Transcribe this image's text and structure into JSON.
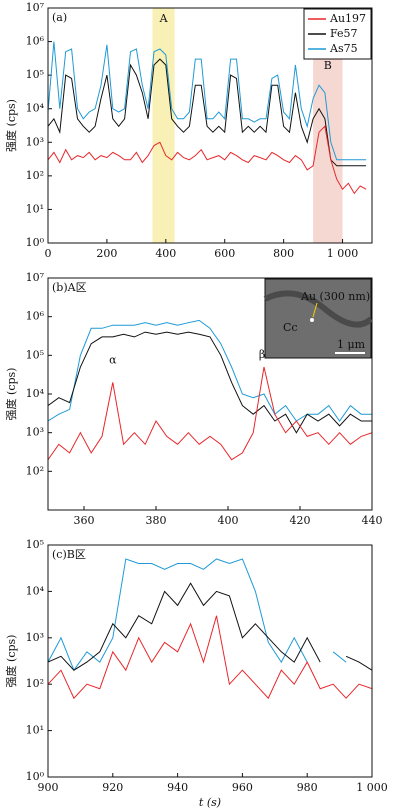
{
  "chart_data": [
    {
      "type": "line",
      "title": "(a)",
      "y_label": "强度 (cps)",
      "log_y": true,
      "legend": "upper right",
      "xlim": [
        0,
        1100
      ],
      "xticks": [
        0,
        200,
        400,
        600,
        800,
        {
          "value": 1000,
          "label": "1 000"
        }
      ],
      "ylim": [
        1,
        10000000
      ],
      "yticks": [
        {
          "value": 1,
          "label": "10⁰"
        },
        {
          "value": 10,
          "label": "10¹"
        },
        {
          "value": 100,
          "label": "10²"
        },
        {
          "value": 1000,
          "label": "10³"
        },
        {
          "value": 10000,
          "label": "10⁴"
        },
        {
          "value": 100000,
          "label": "10⁵"
        },
        {
          "value": 1000000,
          "label": "10⁶"
        },
        {
          "value": 10000000,
          "label": "10⁷"
        }
      ],
      "highlights": [
        {
          "label": "A",
          "x": [
            355,
            430
          ],
          "color": "#f8f0b4"
        },
        {
          "label": "B",
          "x": [
            900,
            1000
          ],
          "color": "#f5d8d2"
        }
      ],
      "x": [
        0,
        20,
        40,
        60,
        80,
        100,
        120,
        140,
        160,
        180,
        200,
        220,
        240,
        260,
        280,
        300,
        320,
        340,
        360,
        380,
        400,
        420,
        440,
        460,
        480,
        500,
        520,
        540,
        560,
        580,
        600,
        620,
        640,
        660,
        680,
        700,
        720,
        740,
        760,
        780,
        800,
        820,
        840,
        860,
        880,
        900,
        920,
        940,
        960,
        980,
        1000,
        1020,
        1040,
        1060,
        1080
      ],
      "series": [
        {
          "name": "Au197",
          "color": "#e8262a",
          "values": [
            300,
            500,
            250,
            600,
            300,
            400,
            350,
            500,
            300,
            400,
            350,
            500,
            400,
            300,
            300,
            500,
            250,
            400,
            800,
            1000,
            400,
            300,
            500,
            350,
            300,
            400,
            600,
            300,
            350,
            400,
            300,
            500,
            400,
            300,
            250,
            400,
            350,
            300,
            500,
            400,
            300,
            250,
            400,
            300,
            150,
            200,
            2000,
            3000,
            300,
            80,
            40,
            60,
            30,
            50,
            40
          ]
        },
        {
          "name": "Fe57",
          "color": "#111111",
          "values": [
            3000,
            5000,
            2000,
            100000,
            80000,
            5000,
            3000,
            2000,
            3000,
            20000,
            100000,
            5000,
            3000,
            5000,
            200000,
            100000,
            30000,
            5000,
            200000,
            300000,
            200000,
            5000,
            3000,
            2000,
            3000,
            50000,
            50000,
            3000,
            2000,
            3000,
            2000,
            100000,
            80000,
            2000,
            3000,
            2000,
            3000,
            2000,
            50000,
            50000,
            3000,
            2000,
            30000,
            3000,
            1000,
            5000,
            10000,
            5000,
            300,
            200,
            200,
            200,
            200,
            200,
            200
          ]
        },
        {
          "name": "As75",
          "color": "#1f9ad6",
          "values": [
            8000,
            1000000,
            10000,
            500000,
            600000,
            10000,
            5000,
            8000,
            10000,
            50000,
            800000,
            10000,
            8000,
            10000,
            500000,
            600000,
            50000,
            10000,
            500000,
            600000,
            400000,
            10000,
            5000,
            5000,
            8000,
            300000,
            300000,
            5000,
            5000,
            8000,
            5000,
            300000,
            300000,
            5000,
            5000,
            4000,
            5000,
            5000,
            80000,
            100000,
            8000,
            5000,
            200000,
            10000,
            3000,
            20000,
            50000,
            30000,
            1000,
            300,
            300,
            300,
            300,
            300,
            300
          ]
        }
      ]
    },
    {
      "type": "line",
      "title": "(b)A区",
      "y_label": "强度 (cps)",
      "log_y": true,
      "xlim": [
        350,
        440
      ],
      "xticks": [
        360,
        380,
        400,
        420,
        440
      ],
      "ylim": [
        10,
        10000000
      ],
      "yticks": [
        {
          "value": 100,
          "label": "10²"
        },
        {
          "value": 1000,
          "label": "10³"
        },
        {
          "value": 10000,
          "label": "10⁴"
        },
        {
          "value": 100000,
          "label": "10⁵"
        },
        {
          "value": 1000000,
          "label": "10⁶"
        },
        {
          "value": 10000000,
          "label": "10⁷"
        }
      ],
      "annotations": [
        "α",
        "β"
      ],
      "inset": {
        "label": "Au (300 nm)",
        "mineral": "Cc",
        "scale": "1 μm"
      },
      "x": [
        350,
        353,
        356,
        359,
        362,
        365,
        368,
        371,
        374,
        377,
        380,
        383,
        386,
        389,
        392,
        395,
        398,
        401,
        404,
        407,
        410,
        413,
        416,
        419,
        422,
        425,
        428,
        431,
        434,
        437,
        440
      ],
      "series": [
        {
          "name": "Au197",
          "color": "#e8262a",
          "values": [
            200,
            500,
            300,
            1000,
            300,
            800,
            20000,
            500,
            1000,
            500,
            2000,
            800,
            500,
            1000,
            500,
            800,
            500,
            200,
            300,
            1000,
            50000,
            3000,
            1000,
            2000,
            800,
            1000,
            500,
            1000,
            500,
            800,
            1000
          ]
        },
        {
          "name": "Fe57",
          "color": "#111111",
          "values": [
            5000,
            8000,
            6000,
            50000,
            200000,
            300000,
            300000,
            350000,
            300000,
            400000,
            350000,
            400000,
            350000,
            400000,
            350000,
            300000,
            100000,
            20000,
            5000,
            3000,
            5000,
            2000,
            3000,
            1000,
            3000,
            2000,
            3000,
            1500,
            3000,
            2000,
            2000
          ]
        },
        {
          "name": "As75",
          "color": "#1f9ad6",
          "values": [
            2000,
            3000,
            4000,
            100000,
            500000,
            500000,
            600000,
            600000,
            600000,
            700000,
            600000,
            700000,
            600000,
            700000,
            800000,
            500000,
            200000,
            50000,
            10000,
            8000,
            10000,
            3000,
            5000,
            2000,
            3000,
            3000,
            5000,
            2000,
            5000,
            3000,
            3000
          ]
        }
      ]
    },
    {
      "type": "line",
      "title": "(c)B区",
      "y_label": "强度 (cps)",
      "x_label": "t (s)",
      "log_y": true,
      "xlim": [
        900,
        1000
      ],
      "xticks": [
        900,
        920,
        940,
        960,
        980,
        {
          "value": 1000,
          "label": "1 000"
        }
      ],
      "ylim": [
        1,
        100000
      ],
      "yticks": [
        {
          "value": 1,
          "label": "10⁰"
        },
        {
          "value": 10,
          "label": "10¹"
        },
        {
          "value": 100,
          "label": "10²"
        },
        {
          "value": 1000,
          "label": "10³"
        },
        {
          "value": 10000,
          "label": "10⁴"
        },
        {
          "value": 100000,
          "label": "10⁵"
        }
      ],
      "x": [
        900,
        904,
        908,
        912,
        916,
        920,
        924,
        928,
        932,
        936,
        940,
        944,
        948,
        952,
        956,
        960,
        964,
        968,
        972,
        976,
        980,
        984,
        988,
        992,
        996,
        1000
      ],
      "series": [
        {
          "name": "Au197",
          "color": "#e8262a",
          "values": [
            100,
            200,
            50,
            100,
            80,
            500,
            200,
            1000,
            300,
            800,
            500,
            2000,
            300,
            3000,
            100,
            200,
            100,
            50,
            200,
            100,
            300,
            80,
            100,
            50,
            100,
            80
          ]
        },
        {
          "name": "Fe57",
          "color": "#111111",
          "values": [
            300,
            400,
            200,
            300,
            500,
            2000,
            1000,
            3000,
            2000,
            10000,
            5000,
            15000,
            5000,
            10000,
            8000,
            1000,
            2000,
            1000,
            500,
            300,
            1000,
            300,
            null,
            400,
            300,
            200
          ]
        },
        {
          "name": "As75",
          "color": "#1f9ad6",
          "values": [
            300,
            1000,
            200,
            500,
            300,
            1000,
            50000,
            40000,
            40000,
            30000,
            40000,
            40000,
            30000,
            50000,
            40000,
            50000,
            10000,
            800,
            300,
            1000,
            300,
            null,
            500,
            300,
            null,
            200
          ]
        }
      ]
    }
  ]
}
